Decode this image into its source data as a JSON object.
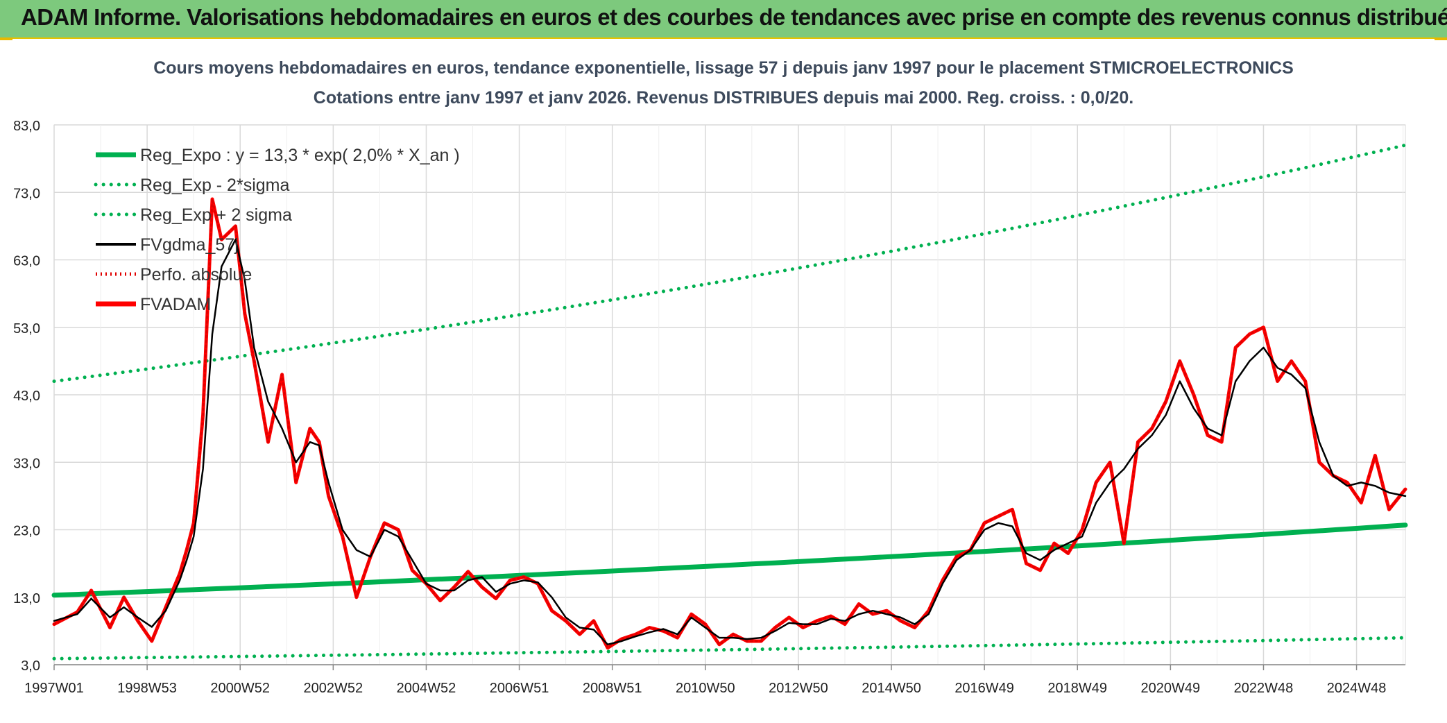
{
  "banner": {
    "title": "ADAM Informe. Valorisations hebdomadaires en euros et des courbes de tendances avec prise en compte des revenus connus distribués"
  },
  "colors": {
    "banner_bg": "#7dc97d",
    "reg_expo": "#00b050",
    "reg_sigma": "#00b050",
    "fvgdma": "#000000",
    "perfo": "#e00000",
    "fvadam": "#ff0000",
    "grid": "#d9d9d9",
    "title_text": "#3d4a5c"
  },
  "chart_data": {
    "type": "line",
    "title": "Cours moyens hebdomadaires en euros, tendance exponentielle, lissage 57 j depuis janv 1997 pour le placement STMICROELECTRONICS",
    "subtitle": "Cotations entre janv 1997 et janv 2026. Revenus DISTRIBUES depuis mai 2000. Reg. croiss. : 0,0/20.",
    "xlabel": "",
    "ylabel": "",
    "xlim": [
      1997.0,
      2026.05
    ],
    "ylim": [
      3.0,
      83.0
    ],
    "yticks": [
      "83,0",
      "73,0",
      "63,0",
      "53,0",
      "43,0",
      "33,0",
      "23,0",
      "13,0",
      "3,0"
    ],
    "ytick_values": [
      83,
      73,
      63,
      53,
      43,
      33,
      23,
      13,
      3
    ],
    "xticks": [
      "1997W01",
      "1998W53",
      "2000W52",
      "2002W52",
      "2004W52",
      "2006W51",
      "2008W51",
      "2010W50",
      "2012W50",
      "2014W50",
      "2016W49",
      "2018W49",
      "2020W49",
      "2022W48",
      "2024W48"
    ],
    "xtick_values": [
      1997.0,
      1999.0,
      2001.0,
      2003.0,
      2005.0,
      2007.0,
      2009.0,
      2011.0,
      2013.0,
      2015.0,
      2017.0,
      2019.0,
      2021.0,
      2023.0,
      2025.0
    ],
    "legend": {
      "placement": "top-left",
      "entries": [
        {
          "name": "Reg_Expo : y = 13,3 * exp( 2,0% *  X_an )",
          "style": "solid-thick-green"
        },
        {
          "name": "Reg_Exp - 2*sigma",
          "style": "dotted-green"
        },
        {
          "name": "Reg_Exp + 2 sigma",
          "style": "dotted-green"
        },
        {
          "name": "FVgdma_57j",
          "style": "solid-black"
        },
        {
          "name": "Perfo. absolue",
          "style": "dotted-red"
        },
        {
          "name": "FVADAM",
          "style": "solid-thick-red"
        }
      ]
    },
    "series": [
      {
        "name": "Reg_Expo : y = 13,3 * exp( 2,0% *  X_an )",
        "x": [
          1997.0,
          2026.05
        ],
        "y": [
          13.3,
          23.7
        ]
      },
      {
        "name": "Reg_Exp - 2*sigma",
        "x": [
          1997.0,
          2026.05
        ],
        "y": [
          3.9,
          7.0
        ]
      },
      {
        "name": "Reg_Exp + 2 sigma",
        "x": [
          1997.0,
          2026.05
        ],
        "y": [
          45.0,
          80.0
        ]
      },
      {
        "name": "FVgdma_57j",
        "x": [
          1997.0,
          1997.5,
          1997.8,
          1998.2,
          1998.5,
          1998.8,
          1999.1,
          1999.4,
          1999.7,
          1999.85,
          2000.0,
          2000.2,
          2000.4,
          2000.6,
          2000.9,
          2001.1,
          2001.3,
          2001.6,
          2001.9,
          2002.2,
          2002.5,
          2002.7,
          2002.9,
          2003.2,
          2003.5,
          2003.8,
          2004.1,
          2004.4,
          2004.7,
          2005.0,
          2005.3,
          2005.6,
          2005.9,
          2006.2,
          2006.5,
          2006.8,
          2007.1,
          2007.4,
          2007.7,
          2008.0,
          2008.3,
          2008.6,
          2008.9,
          2009.2,
          2009.5,
          2009.8,
          2010.1,
          2010.4,
          2010.7,
          2011.0,
          2011.3,
          2011.6,
          2011.9,
          2012.2,
          2012.5,
          2012.8,
          2013.1,
          2013.4,
          2013.7,
          2014.0,
          2014.3,
          2014.6,
          2014.9,
          2015.2,
          2015.5,
          2015.8,
          2016.1,
          2016.4,
          2016.7,
          2017.0,
          2017.3,
          2017.6,
          2017.9,
          2018.2,
          2018.5,
          2018.8,
          2019.1,
          2019.4,
          2019.7,
          2020.0,
          2020.3,
          2020.6,
          2020.9,
          2021.2,
          2021.5,
          2021.8,
          2022.1,
          2022.4,
          2022.7,
          2023.0,
          2023.3,
          2023.6,
          2023.9,
          2024.2,
          2024.5,
          2024.8,
          2025.1,
          2025.4,
          2025.7,
          2026.05
        ],
        "y": [
          9.5,
          10.5,
          12.8,
          10.0,
          11.5,
          10.0,
          8.6,
          11.0,
          15.5,
          18.5,
          22.0,
          32.0,
          52.0,
          62.0,
          66.0,
          60.0,
          50.0,
          42.0,
          38.0,
          33.0,
          36.0,
          35.5,
          30.0,
          23.0,
          20.0,
          19.0,
          23.0,
          22.0,
          18.5,
          15.0,
          14.0,
          14.0,
          15.5,
          16.0,
          13.8,
          15.0,
          15.5,
          15.2,
          13.0,
          10.0,
          8.5,
          8.2,
          6.0,
          6.5,
          7.2,
          7.8,
          8.3,
          7.5,
          10.0,
          8.5,
          7.0,
          7.0,
          6.8,
          7.0,
          8.0,
          9.2,
          9.0,
          9.0,
          9.8,
          9.5,
          10.5,
          11.0,
          10.5,
          10.0,
          9.0,
          10.5,
          15.0,
          18.5,
          20.0,
          23.0,
          24.0,
          23.5,
          19.5,
          18.5,
          20.0,
          21.0,
          22.0,
          27.0,
          30.0,
          32.0,
          35.0,
          37.0,
          40.0,
          45.0,
          41.0,
          38.0,
          37.0,
          45.0,
          48.0,
          50.0,
          47.0,
          46.0,
          44.0,
          36.0,
          31.0,
          29.5,
          30.0,
          29.5,
          28.5,
          28.0
        ]
      },
      {
        "name": "Perfo. absolue",
        "x": [
          1997.0,
          1997.5,
          1997.8,
          1998.2,
          1998.5,
          1998.8,
          1999.1,
          1999.4,
          1999.7,
          1999.85,
          2000.0,
          2000.2,
          2000.4,
          2000.6,
          2000.9,
          2001.1,
          2001.3,
          2001.6,
          2001.9,
          2002.2,
          2002.5,
          2002.7,
          2002.9,
          2003.2,
          2003.5,
          2003.8,
          2004.1,
          2004.4,
          2004.7,
          2005.0,
          2005.3,
          2005.6,
          2005.9,
          2006.2,
          2006.5,
          2006.8,
          2007.1,
          2007.4,
          2007.7,
          2008.0,
          2008.3,
          2008.6,
          2008.9,
          2009.2,
          2009.5,
          2009.8,
          2010.1,
          2010.4,
          2010.7,
          2011.0,
          2011.3,
          2011.6,
          2011.9,
          2012.2,
          2012.5,
          2012.8,
          2013.1,
          2013.4,
          2013.7,
          2014.0,
          2014.3,
          2014.6,
          2014.9,
          2015.2,
          2015.5,
          2015.8,
          2016.1,
          2016.4,
          2016.7,
          2017.0,
          2017.3,
          2017.6,
          2017.9,
          2018.2,
          2018.5,
          2018.8,
          2019.1,
          2019.4,
          2019.7,
          2020.0,
          2020.3,
          2020.6,
          2020.9,
          2021.2,
          2021.5,
          2021.8,
          2022.1,
          2022.4,
          2022.7,
          2023.0,
          2023.3,
          2023.6,
          2023.9,
          2024.2,
          2024.5,
          2024.8,
          2025.1,
          2025.4,
          2025.7,
          2026.05
        ],
        "y": [
          9.0,
          10.8,
          14.0,
          8.5,
          13.0,
          9.5,
          6.5,
          11.5,
          16.5,
          20.0,
          24.0,
          40.0,
          72.0,
          66.0,
          68.0,
          55.0,
          48.0,
          36.0,
          46.0,
          30.0,
          38.0,
          36.0,
          28.0,
          22.0,
          13.0,
          19.0,
          24.0,
          23.0,
          17.0,
          15.0,
          12.5,
          14.5,
          16.8,
          14.5,
          12.8,
          15.5,
          16.0,
          15.0,
          11.0,
          9.5,
          7.5,
          9.5,
          5.5,
          6.8,
          7.5,
          8.5,
          8.0,
          7.0,
          10.5,
          9.0,
          6.0,
          7.5,
          6.5,
          6.5,
          8.5,
          10.0,
          8.5,
          9.5,
          10.2,
          9.0,
          12.0,
          10.5,
          11.0,
          9.5,
          8.5,
          11.0,
          15.5,
          19.0,
          20.0,
          24.0,
          25.0,
          26.0,
          18.0,
          17.0,
          21.0,
          19.5,
          23.0,
          30.0,
          33.0,
          21.0,
          36.0,
          38.0,
          42.0,
          48.0,
          43.0,
          37.0,
          36.0,
          50.0,
          52.0,
          53.0,
          45.0,
          48.0,
          45.0,
          33.0,
          31.0,
          30.0,
          27.0,
          34.0,
          26.0,
          29.0
        ]
      },
      {
        "name": "FVADAM",
        "x": [
          1997.0,
          1997.5,
          1997.8,
          1998.2,
          1998.5,
          1998.8,
          1999.1,
          1999.4,
          1999.7,
          1999.85,
          2000.0,
          2000.2,
          2000.4,
          2000.6,
          2000.9,
          2001.1,
          2001.3,
          2001.6,
          2001.9,
          2002.2,
          2002.5,
          2002.7,
          2002.9,
          2003.2,
          2003.5,
          2003.8,
          2004.1,
          2004.4,
          2004.7,
          2005.0,
          2005.3,
          2005.6,
          2005.9,
          2006.2,
          2006.5,
          2006.8,
          2007.1,
          2007.4,
          2007.7,
          2008.0,
          2008.3,
          2008.6,
          2008.9,
          2009.2,
          2009.5,
          2009.8,
          2010.1,
          2010.4,
          2010.7,
          2011.0,
          2011.3,
          2011.6,
          2011.9,
          2012.2,
          2012.5,
          2012.8,
          2013.1,
          2013.4,
          2013.7,
          2014.0,
          2014.3,
          2014.6,
          2014.9,
          2015.2,
          2015.5,
          2015.8,
          2016.1,
          2016.4,
          2016.7,
          2017.0,
          2017.3,
          2017.6,
          2017.9,
          2018.2,
          2018.5,
          2018.8,
          2019.1,
          2019.4,
          2019.7,
          2020.0,
          2020.3,
          2020.6,
          2020.9,
          2021.2,
          2021.5,
          2021.8,
          2022.1,
          2022.4,
          2022.7,
          2023.0,
          2023.3,
          2023.6,
          2023.9,
          2024.2,
          2024.5,
          2024.8,
          2025.1,
          2025.4,
          2025.7,
          2026.05
        ],
        "y": [
          9.0,
          10.8,
          14.0,
          8.5,
          13.0,
          9.5,
          6.5,
          11.5,
          16.5,
          20.0,
          24.0,
          40.0,
          72.0,
          66.0,
          68.0,
          55.0,
          48.0,
          36.0,
          46.0,
          30.0,
          38.0,
          36.0,
          28.0,
          22.0,
          13.0,
          19.0,
          24.0,
          23.0,
          17.0,
          15.0,
          12.5,
          14.5,
          16.8,
          14.5,
          12.8,
          15.5,
          16.0,
          15.0,
          11.0,
          9.5,
          7.5,
          9.5,
          5.5,
          6.8,
          7.5,
          8.5,
          8.0,
          7.0,
          10.5,
          9.0,
          6.0,
          7.5,
          6.5,
          6.5,
          8.5,
          10.0,
          8.5,
          9.5,
          10.2,
          9.0,
          12.0,
          10.5,
          11.0,
          9.5,
          8.5,
          11.0,
          15.5,
          19.0,
          20.0,
          24.0,
          25.0,
          26.0,
          18.0,
          17.0,
          21.0,
          19.5,
          23.0,
          30.0,
          33.0,
          21.0,
          36.0,
          38.0,
          42.0,
          48.0,
          43.0,
          37.0,
          36.0,
          50.0,
          52.0,
          53.0,
          45.0,
          48.0,
          45.0,
          33.0,
          31.0,
          30.0,
          27.0,
          34.0,
          26.0,
          29.0
        ]
      }
    ]
  }
}
